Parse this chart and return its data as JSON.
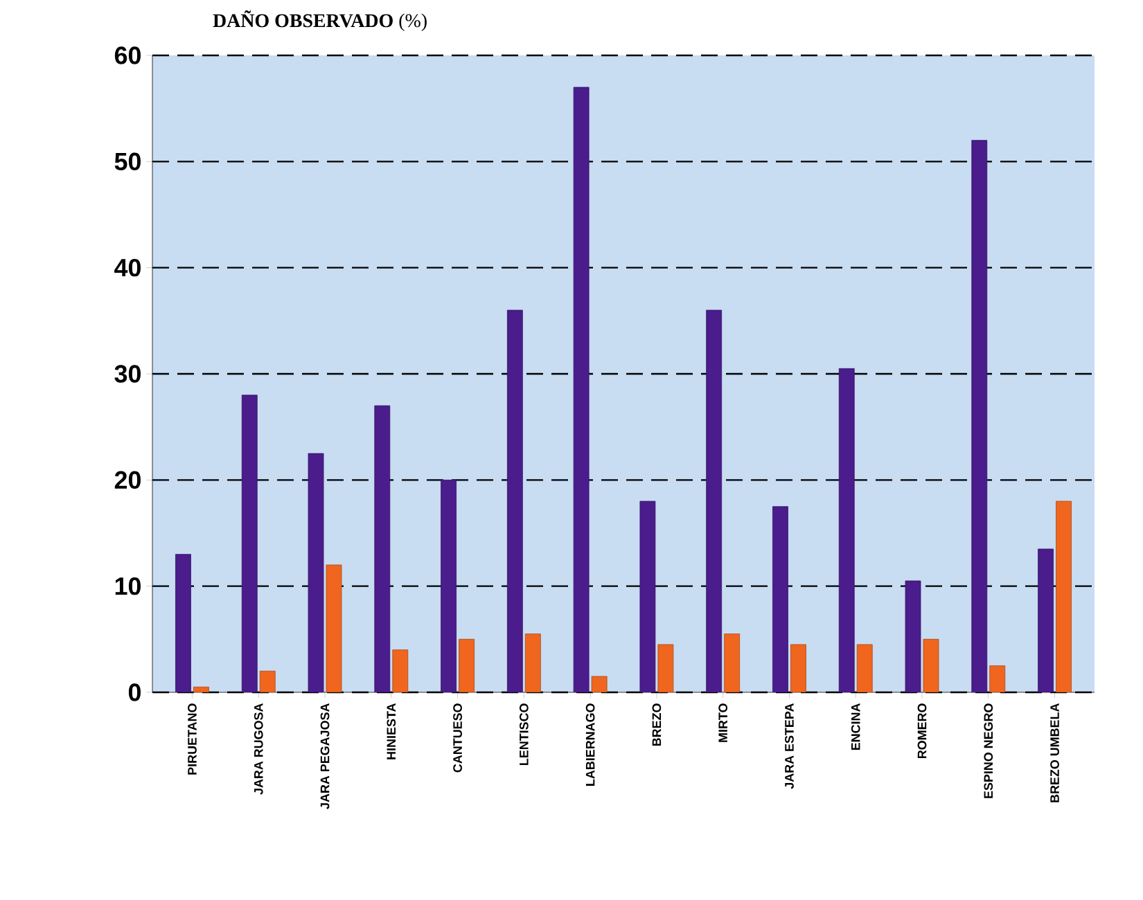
{
  "chart_data": {
    "type": "bar",
    "title": "**DAÑO OBSERVADO** (%)",
    "categories": [
      "PIRUETANO",
      "JARA RUGOSA",
      "JARA PEGAJOSA",
      "HINIESTA",
      "CANTUESO",
      "LENTISCO",
      "LABIERNAGO",
      "BREZO",
      "MIRTO",
      "JARA ESTEPA",
      "ENCINA",
      "ROMERO",
      "ESPINO NEGRO",
      "BREZO UMBELA"
    ],
    "series": [
      {
        "color": "#4a1c8c",
        "values": [
          13,
          28,
          22.5,
          27,
          20,
          36,
          57,
          18,
          36,
          17.5,
          30.5,
          10.5,
          52,
          13.5
        ]
      },
      {
        "color": "#f0661e",
        "values": [
          0.5,
          2,
          12,
          4,
          5,
          5.5,
          1.5,
          4.5,
          5.5,
          4.5,
          4.5,
          5,
          2.5,
          18
        ]
      }
    ],
    "ylim": [
      0,
      60
    ],
    "yticks": [
      0,
      10,
      20,
      30,
      40,
      50,
      60
    ],
    "grid": "y"
  }
}
